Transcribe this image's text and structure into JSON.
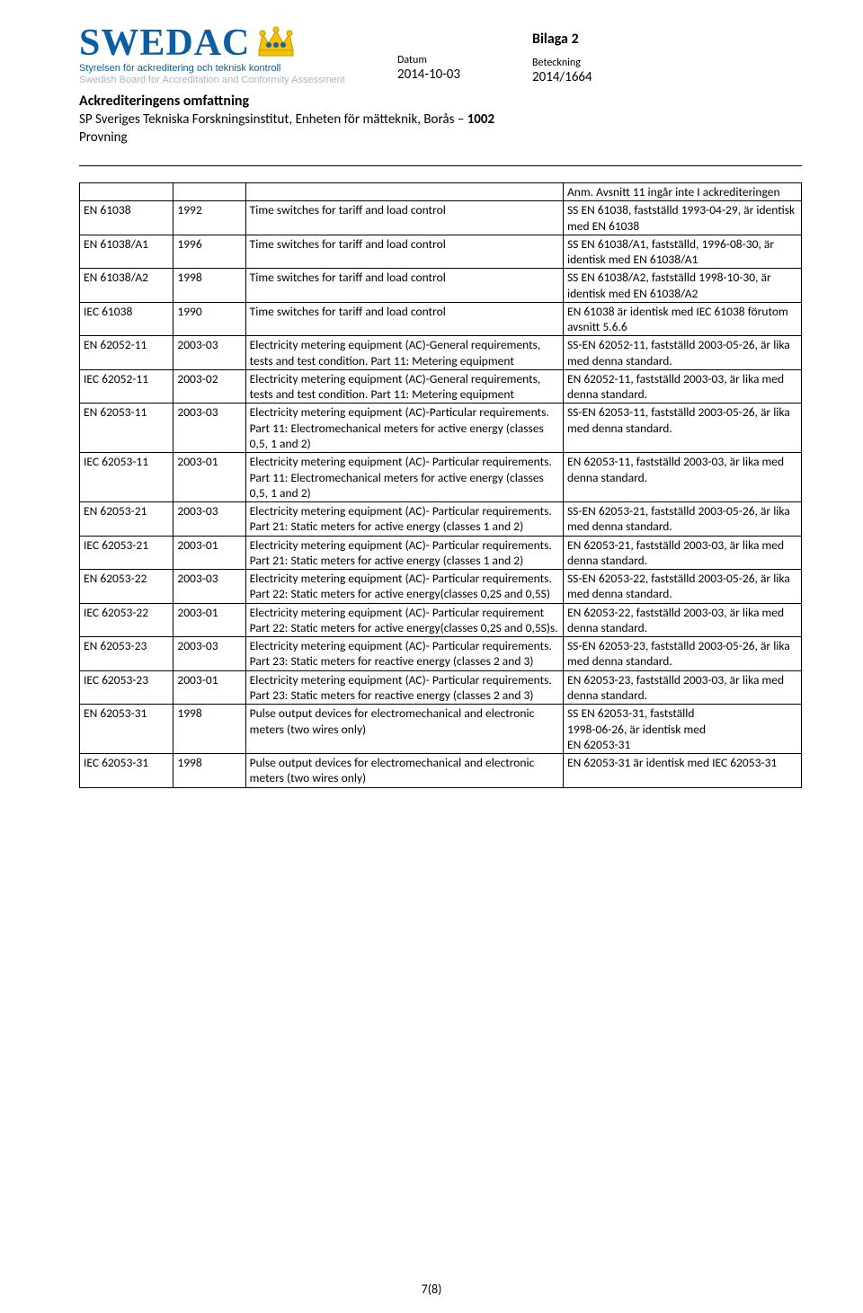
{
  "logo": {
    "text": "SWEDAC",
    "sub_sv": "Styrelsen för ackreditering och teknisk kontroll",
    "sub_en": "Swedish Board for Accreditation and Conformity Assessment",
    "colors": {
      "blue": "#0b5ea4",
      "grey": "#a8b7c4",
      "crown_gold": "#f6c200",
      "crown_blue": "#1f5fa0"
    }
  },
  "meta": {
    "datum_label": "Datum",
    "datum_value": "2014-10-03",
    "bilaga": "Bilaga 2",
    "beteckning_label": "Beteckning",
    "beteckning_value": "2014/1664"
  },
  "scope": {
    "title": "Ackrediteringens omfattning",
    "line1_pre": "SP Sveriges Tekniska Forskningsinstitut, Enheten för mätteknik, Borås – ",
    "line1_num": "1002",
    "line2": "Provning"
  },
  "note_row": {
    "c1": "",
    "c2": "",
    "c3": "",
    "c4": "Anm. Avsnitt 11 ingår inte I ackrediteringen"
  },
  "rows": [
    {
      "c1": "EN 61038",
      "c2": "1992",
      "c3": "Time switches for tariff and load control",
      "c4": "SS EN 61038, fastställd 1993-04-29, är identisk med EN 61038"
    },
    {
      "c1": "EN 61038/A1",
      "c2": "1996",
      "c3": "Time switches for tariff and load control",
      "c4": "SS EN 61038/A1, fastställd, 1996-08-30, är identisk med EN 61038/A1"
    },
    {
      "c1": "EN 61038/A2",
      "c2": "1998",
      "c3": "Time switches for tariff and load control",
      "c4": "SS EN 61038/A2, fastställd 1998-10-30, är identisk med EN 61038/A2"
    },
    {
      "c1": "IEC 61038",
      "c2": "1990",
      "c3": "Time switches for tariff and load control",
      "c4": "EN 61038 är identisk med IEC 61038 förutom avsnitt 5.6.6"
    },
    {
      "c1": "EN 62052-11",
      "c2": "2003-03",
      "c3": "Electricity metering equipment (AC)-General requirements, tests and test condition. Part 11: Metering equipment",
      "c4": "SS-EN 62052-11, fastställd 2003-05-26, är lika med denna standard."
    },
    {
      "c1": "IEC 62052-11",
      "c2": "2003-02",
      "c3": "Electricity metering equipment (AC)-General requirements, tests and test condition. Part 11: Metering equipment",
      "c4": "EN 62052-11, fastställd 2003-03, är lika med denna standard."
    },
    {
      "c1": "EN 62053-11",
      "c2": "2003-03",
      "c3": "Electricity metering equipment (AC)-Particular requirements. Part 11: Electromechanical meters for active energy (classes 0,5, 1 and 2)",
      "c4": "SS-EN 62053-11, fastställd 2003-05-26, är lika med denna standard."
    },
    {
      "c1": "IEC 62053-11",
      "c2": "2003-01",
      "c3": "Electricity metering equipment (AC)- Particular requirements. Part 11: Electromechanical meters for active energy (classes 0,5, 1 and 2)",
      "c4": "EN 62053-11, fastställd 2003-03, är lika med denna standard."
    },
    {
      "c1": "EN 62053-21",
      "c2": "2003-03",
      "c3": "Electricity metering equipment (AC)- Particular requirements.\nPart 21: Static meters for active energy (classes 1 and 2)",
      "c4": "SS-EN 62053-21, fastställd 2003-05-26, är lika med denna standard."
    },
    {
      "c1": "IEC 62053-21",
      "c2": "2003-01",
      "c3": "Electricity metering equipment (AC)- Particular requirements. Part 21: Static meters for active energy (classes 1 and 2)",
      "c4": "EN 62053-21, fastställd 2003-03, är lika med denna standard."
    },
    {
      "c1": "EN 62053-22",
      "c2": "2003-03",
      "c3": "Electricity metering equipment (AC)- Particular requirements. Part 22: Static meters for active energy(classes 0,2S and 0,5S)",
      "c4": "SS-EN 62053-22, fastställd 2003-05-26, är lika med denna standard."
    },
    {
      "c1": "IEC 62053-22",
      "c2": "2003-01",
      "c3": "Electricity metering equipment (AC)- Particular requirement Part 22: Static meters for active energy(classes 0,2S and 0,5S)s.",
      "c4": "EN 62053-22, fastställd 2003-03, är lika med denna standard."
    },
    {
      "c1": "EN 62053-23",
      "c2": "2003-03",
      "c3": "Electricity metering equipment (AC)- Particular requirements. Part 23: Static meters for reactive energy (classes 2 and 3)",
      "c4": "SS-EN 62053-23, fastställd 2003-05-26, är lika med denna standard."
    },
    {
      "c1": "IEC 62053-23",
      "c2": "2003-01",
      "c3": "Electricity metering equipment (AC)- Particular requirements. Part 23: Static meters for reactive energy (classes 2 and 3)",
      "c4": "EN 62053-23, fastställd 2003-03, är lika med denna standard."
    },
    {
      "c1": "EN 62053-31",
      "c2": "1998",
      "c3": "Pulse output devices for electromechanical and electronic meters (two wires only)",
      "c4": "SS EN 62053-31, fastställd\n1998-06-26, är identisk med\nEN 62053-31"
    },
    {
      "c1": "IEC 62053-31",
      "c2": "1998",
      "c3": "Pulse output devices for electromechanical and electronic meters (two wires only)",
      "c4": "EN 62053-31 är identisk med IEC 62053-31"
    }
  ],
  "page_number": "7(8)"
}
